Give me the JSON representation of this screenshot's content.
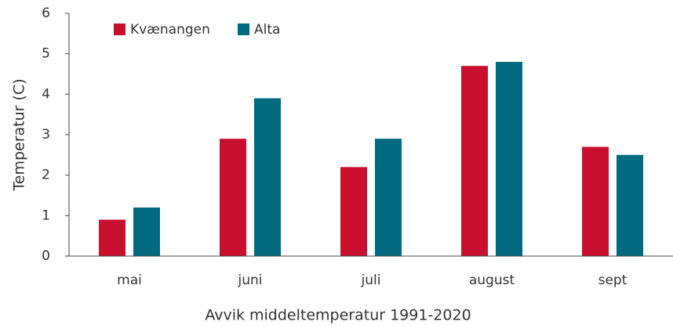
{
  "chart_data": {
    "type": "bar",
    "xlabel": "Avvik middeltemperatur 1991-2020",
    "ylabel": "Temperatur (C)",
    "categories": [
      "mai",
      "juni",
      "juli",
      "august",
      "sept"
    ],
    "series": [
      {
        "name": "Kvænangen",
        "color": "#c8102e",
        "values": [
          0.9,
          2.9,
          2.2,
          4.7,
          2.7
        ]
      },
      {
        "name": "Alta",
        "color": "#006a80",
        "values": [
          1.2,
          3.9,
          2.9,
          4.8,
          2.5
        ]
      }
    ],
    "ylim": [
      0,
      6
    ],
    "yticks": [
      0,
      1,
      2,
      3,
      4,
      5,
      6
    ],
    "legend": "upper left"
  }
}
